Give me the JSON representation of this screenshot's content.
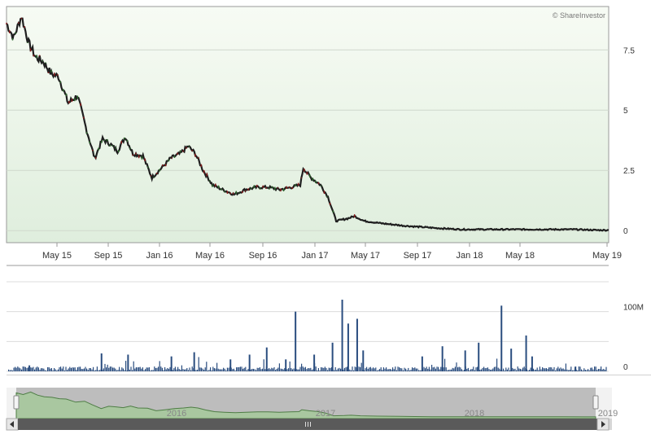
{
  "credit": "© ShareInvestor",
  "colors": {
    "up": "#2d6a2d",
    "down": "#8b1a1a",
    "line": "#1f1f1f",
    "volume": "#2a4d7f",
    "plot_bg_top": "#f7fbf4",
    "plot_bg_bottom": "#dfeedd",
    "navigator_fill": "#a9c7a0",
    "navigator_line": "#4e7d45",
    "navigator_bg": "#bdbdbd",
    "scrollbar": "#5a5a5a"
  },
  "chart_data": {
    "type": "line",
    "price": {
      "ylim": [
        -0.5,
        9.3
      ],
      "ticks": [
        0,
        2.5,
        5,
        7.5
      ],
      "tick_labels": [
        "0",
        "2.5",
        "5",
        "7.5"
      ],
      "series": [
        {
          "name": "",
          "x": [
            "2015-01-01",
            "2015-01-20",
            "2015-02-10",
            "2015-03-01",
            "2015-03-20",
            "2015-04-10",
            "2015-05-01",
            "2015-05-20",
            "2015-06-15",
            "2015-07-10",
            "2015-08-01",
            "2015-08-25",
            "2015-09-15",
            "2015-10-05",
            "2015-10-25",
            "2015-11-15",
            "2015-12-05",
            "2016-01-01",
            "2016-01-25",
            "2016-02-20",
            "2016-03-15",
            "2016-04-10",
            "2016-05-01",
            "2016-05-20",
            "2016-06-10",
            "2016-07-05",
            "2016-08-01",
            "2016-09-01",
            "2016-10-01",
            "2016-11-01",
            "2016-12-01",
            "2017-01-01",
            "2017-02-01",
            "2017-02-25",
            "2017-03-05",
            "2017-03-25",
            "2017-04-20",
            "2017-05-10",
            "2017-06-01",
            "2017-07-01",
            "2017-07-20",
            "2017-08-15",
            "2017-10-01",
            "2017-12-01",
            "2018-01-15",
            "2018-03-01",
            "2018-05-01",
            "2018-07-01",
            "2018-09-01",
            "2018-11-01",
            "2019-01-01",
            "2019-03-01",
            "2019-05-01",
            "2019-05-31"
          ],
          "y": [
            8.6,
            8.0,
            8.9,
            7.8,
            7.2,
            7.0,
            6.5,
            6.4,
            5.3,
            5.6,
            4.3,
            3.0,
            3.8,
            3.6,
            3.3,
            3.9,
            3.2,
            3.1,
            2.2,
            2.6,
            3.0,
            3.2,
            3.5,
            3.2,
            2.5,
            1.9,
            1.7,
            1.5,
            1.7,
            1.8,
            1.8,
            1.7,
            1.8,
            1.9,
            2.6,
            2.2,
            1.9,
            1.4,
            0.4,
            0.5,
            0.6,
            0.4,
            0.3,
            0.2,
            0.15,
            0.1,
            0.05,
            0.05,
            0.05,
            0.05,
            0.05,
            0.05,
            0.02,
            0.02
          ]
        }
      ]
    },
    "x_axis": {
      "tick_labels": [
        "May 15",
        "Sep 15",
        "Jan 16",
        "May 16",
        "Sep 16",
        "Jan 17",
        "May 17",
        "Sep 17",
        "Jan 18",
        "May 18",
        "May 19"
      ]
    },
    "volume": {
      "ylim": [
        0,
        150
      ],
      "unit": "M",
      "tick_labels": [
        "0",
        "100M"
      ],
      "x": [
        "2015-03-01",
        "2015-09-10",
        "2015-11-20",
        "2016-03-15",
        "2016-05-15",
        "2016-08-20",
        "2016-10-10",
        "2016-11-25",
        "2017-01-15",
        "2017-02-10",
        "2017-04-01",
        "2017-05-20",
        "2017-06-15",
        "2017-07-01",
        "2017-07-25",
        "2017-08-10",
        "2018-01-15",
        "2018-03-10",
        "2018-05-10",
        "2018-06-15",
        "2018-08-15",
        "2018-09-10",
        "2018-10-20",
        "2018-11-05",
        "2019-03-01"
      ],
      "y": [
        10,
        30,
        28,
        25,
        32,
        20,
        28,
        40,
        20,
        100,
        28,
        48,
        120,
        80,
        88,
        35,
        25,
        42,
        35,
        48,
        110,
        38,
        60,
        25,
        8
      ]
    },
    "navigator": {
      "tick_labels": [
        "2016",
        "2017",
        "2018",
        "2019"
      ]
    }
  }
}
